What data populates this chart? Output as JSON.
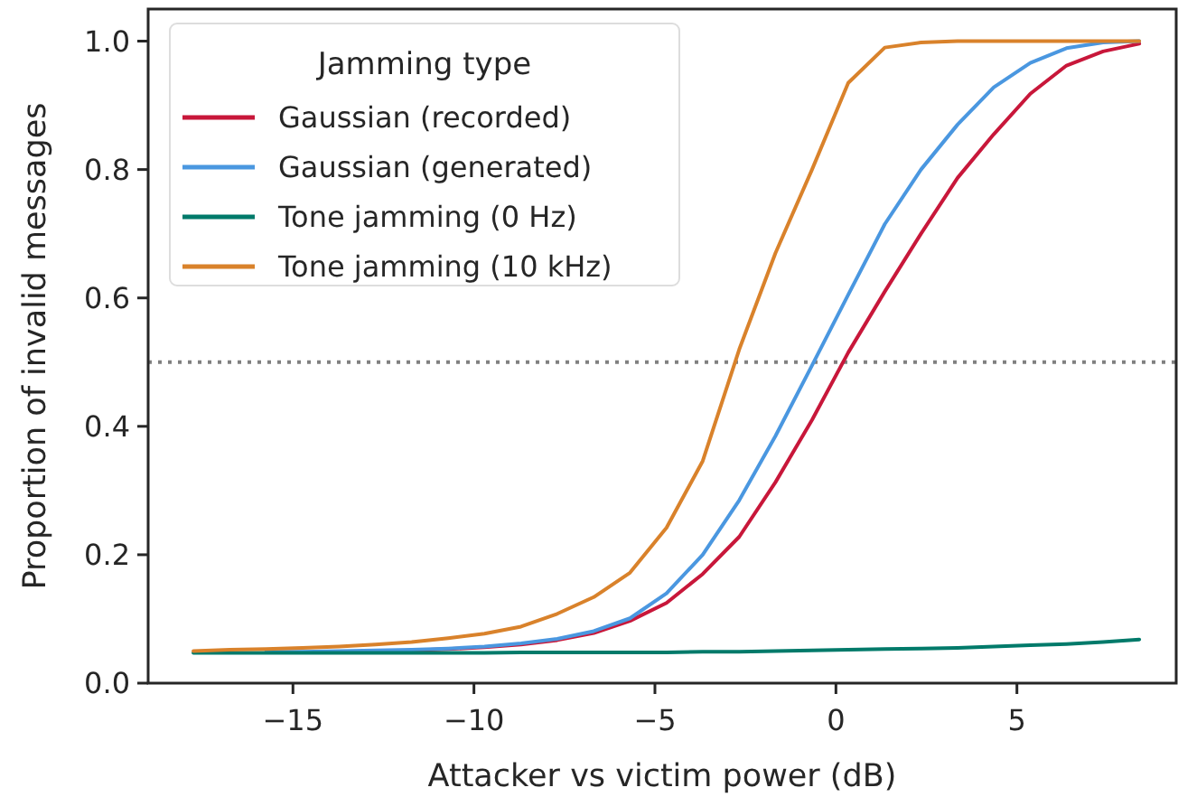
{
  "chart_data": {
    "type": "line",
    "xlabel": "Attacker vs victim power (dB)",
    "ylabel": "Proportion of invalid messages",
    "legend_title": "Jamming type",
    "legend": "top left",
    "grid": false,
    "x": [
      -17.75,
      -16.74,
      -15.74,
      -14.74,
      -13.73,
      -12.72,
      -11.72,
      -10.71,
      -9.71,
      -8.7,
      -7.7,
      -6.69,
      -5.69,
      -4.68,
      -3.68,
      -2.67,
      -1.67,
      -0.66,
      0.34,
      1.35,
      2.35,
      3.36,
      4.36,
      5.37,
      6.37,
      7.38,
      8.38
    ],
    "xlim": [
      -19,
      9.4
    ],
    "xticks": [
      {
        "value": -15,
        "label": "−15"
      },
      {
        "value": -10,
        "label": "−10"
      },
      {
        "value": -5,
        "label": "−5"
      },
      0,
      5
    ],
    "ylim": [
      0,
      1.05
    ],
    "yticks": [
      {
        "value": 0,
        "label": "0.0"
      },
      {
        "value": 0.2,
        "label": "0.2"
      },
      {
        "value": 0.4,
        "label": "0.4"
      },
      {
        "value": 0.6,
        "label": "0.6"
      },
      {
        "value": 0.8,
        "label": "0.8"
      },
      {
        "value": 1,
        "label": "1.0"
      }
    ],
    "series": [
      {
        "name": "Gaussian (recorded)",
        "color": "#c8173a",
        "values": [
          null,
          null,
          null,
          null,
          null,
          null,
          0.051,
          0.053,
          0.056,
          0.06,
          0.067,
          0.078,
          0.097,
          0.125,
          0.17,
          0.228,
          0.313,
          0.41,
          0.515,
          0.61,
          0.7,
          0.787,
          0.855,
          0.918,
          0.962,
          0.984,
          0.996
        ]
      },
      {
        "name": "Gaussian (generated)",
        "color": "#4a97e0",
        "values": [
          null,
          null,
          0.049,
          0.049,
          0.05,
          0.051,
          0.052,
          0.054,
          0.057,
          0.062,
          0.069,
          0.081,
          0.101,
          0.14,
          0.2,
          0.285,
          0.385,
          0.495,
          0.605,
          0.715,
          0.8,
          0.87,
          0.928,
          0.966,
          0.989,
          0.998,
          1.0
        ]
      },
      {
        "name": "Tone jamming (0 Hz)",
        "color": "#007a6a",
        "values": [
          0.047,
          0.047,
          0.047,
          0.047,
          0.047,
          0.047,
          0.047,
          0.047,
          0.047,
          0.048,
          0.048,
          0.048,
          0.048,
          0.048,
          0.049,
          0.049,
          0.05,
          0.051,
          0.052,
          0.053,
          0.054,
          0.055,
          0.057,
          0.059,
          0.061,
          0.064,
          0.068
        ]
      },
      {
        "name": "Tone jamming (10 kHz)",
        "color": "#d9822b",
        "values": [
          0.05,
          0.052,
          0.053,
          0.055,
          0.057,
          0.06,
          0.064,
          0.07,
          0.077,
          0.088,
          0.108,
          0.134,
          0.172,
          0.242,
          0.346,
          0.52,
          0.67,
          0.8,
          0.935,
          0.99,
          0.998,
          1.0,
          1.0,
          1.0,
          1.0,
          1.0,
          1.0
        ]
      }
    ],
    "ref_lines": [
      {
        "axis": "y",
        "value": 0.5,
        "color": "#808080",
        "line_style": "dotted"
      }
    ]
  }
}
